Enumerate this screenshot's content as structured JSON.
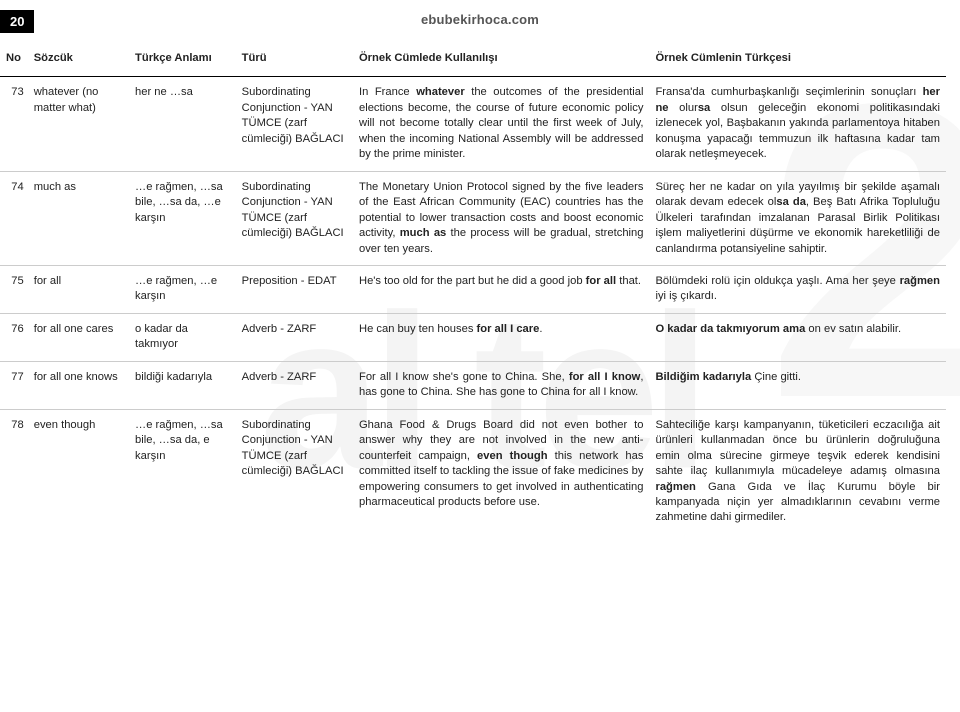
{
  "page_number": "20",
  "site": "ebubekirhoca.com",
  "watermark_main": "al tel",
  "watermark_side": "2",
  "columns": {
    "no": "No",
    "sozcuk": "Sözcük",
    "anlam": "Türkçe Anlamı",
    "turu": "Türü",
    "ornek_en": "Örnek Cümlede Kullanılışı",
    "ornek_tr": "Örnek Cümlenin Türkçesi"
  },
  "rows": [
    {
      "no": "73",
      "sozcuk": "whatever (no matter what)",
      "anlam": "her ne …sa",
      "turu": "Subordinating Conjunction - YAN TÜMCE (zarf cümleciği) BAĞLACI",
      "en": "In France <b>whatever</b> the outcomes of the presidential elections become, the course of future economic policy will not become totally clear until the first week of July, when the incoming National Assembly will be addressed by the prime minister.",
      "tr": "Fransa'da cumhurbaşkanlığı seçimlerinin sonuçları <b>her ne</b> olur<b>sa</b> olsun geleceğin ekonomi politikasındaki izlenecek yol, Başbakanın yakında parlamentoya hitaben konuşma yapacağı temmuzun ilk haftasına kadar tam olarak netleşmeyecek."
    },
    {
      "no": "74",
      "sozcuk": "much as",
      "anlam": "…e rağmen, …sa bile, …sa da, …e karşın",
      "turu": "Subordinating Conjunction - YAN TÜMCE (zarf cümleciği) BAĞLACI",
      "en": "The Monetary Union Protocol signed by the five leaders of the East African Community (EAC) countries has the potential to lower transaction costs and boost economic activity, <b>much as</b> the process will be gradual, stretching over ten years.",
      "tr": "Süreç her ne kadar on yıla yayılmış bir şekilde aşamalı olarak devam edecek ol<b>sa da</b>, Beş Batı Afrika Topluluğu Ülkeleri tarafından imzalanan Parasal Birlik Politikası işlem maliyetlerini düşürme ve ekonomik hareketliliği de canlandırma potansiyeline sahiptir."
    },
    {
      "no": "75",
      "sozcuk": "for all",
      "anlam": "…e rağmen, …e karşın",
      "turu": "Preposition - EDAT",
      "en": "He's too old for the part but he did a good job <b>for all</b> that.",
      "tr": "Bölümdeki rolü için oldukça yaşlı. Ama her şeye <b>rağmen</b> iyi iş çıkardı."
    },
    {
      "no": "76",
      "sozcuk": "for all one cares",
      "anlam": "o kadar da takmıyor",
      "turu": "Adverb - ZARF",
      "en": "He can buy ten houses <b>for all I care</b>.",
      "tr": "<b>O kadar da takmıyorum ama</b> on ev satın alabilir."
    },
    {
      "no": "77",
      "sozcuk": "for all one knows",
      "anlam": "bildiği kadarıyla",
      "turu": "Adverb - ZARF",
      "en": "For all I know she's gone to China. She, <b>for all I know</b>, has gone to China. She has gone to China for all I know.",
      "tr": "<b>Bildiğim kadarıyla</b> Çine gitti."
    },
    {
      "no": "78",
      "sozcuk": "even though",
      "anlam": "…e rağmen, …sa bile, …sa da, e karşın",
      "turu": "Subordinating Conjunction - YAN TÜMCE (zarf cümleciği) BAĞLACI",
      "en": "Ghana Food & Drugs Board did not even bother to answer why they are not involved in the new anti-counterfeit campaign, <b>even though</b> this network has committed itself to tackling the issue of fake medicines by empowering consumers to get involved in authenticating pharmaceutical products before use.",
      "tr": "Sahteciliğe karşı kampanyanın, tüketicileri eczacılığa ait ürünleri kullanmadan önce bu ürünlerin doğruluğuna emin olma sürecine girmeye teşvik ederek kendisini sahte ilaç kullanımıyla mücadeleye adamış olmasına <b>rağmen</b> Gana Gıda ve İlaç Kurumu böyle bir kampanyada niçin yer almadıklarının cevabını verme zahmetine dahi girmediler."
    }
  ]
}
